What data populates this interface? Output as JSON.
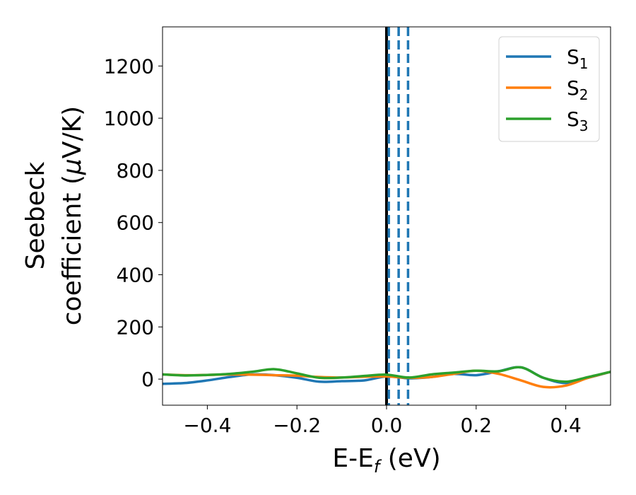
{
  "chart_data": {
    "type": "line",
    "xlabel": {
      "main": "E-E",
      "sub": "f",
      "rest": " (eV)"
    },
    "ylabel": {
      "line1": "Seebeck",
      "line2_pre": "coefficient  (",
      "line2_mu": "μ",
      "line2_post": "V/K)"
    },
    "xlim": [
      -0.5,
      0.5
    ],
    "ylim": [
      -100,
      1350
    ],
    "xticks": [
      {
        "value": -0.4,
        "label": "−0.4"
      },
      {
        "value": -0.2,
        "label": "−0.2"
      },
      {
        "value": 0.0,
        "label": "0.0"
      },
      {
        "value": 0.2,
        "label": "0.2"
      },
      {
        "value": 0.4,
        "label": "0.4"
      }
    ],
    "yticks": [
      {
        "value": 0,
        "label": "0"
      },
      {
        "value": 200,
        "label": "200"
      },
      {
        "value": 400,
        "label": "400"
      },
      {
        "value": 600,
        "label": "600"
      },
      {
        "value": 800,
        "label": "800"
      },
      {
        "value": 1000,
        "label": "1000"
      },
      {
        "value": 1200,
        "label": "1200"
      }
    ],
    "vlines": [
      {
        "x": 0.0,
        "style": "solid",
        "color": "#000000"
      },
      {
        "x": 0.005,
        "style": "dashed",
        "color": "#1f77b4"
      },
      {
        "x": 0.027,
        "style": "dashed",
        "color": "#1f77b4"
      },
      {
        "x": 0.048,
        "style": "dashed",
        "color": "#1f77b4"
      }
    ],
    "legend_position": "top-right",
    "series": [
      {
        "name": "S",
        "sub": "1",
        "color": "#1f77b4",
        "x": [
          -0.5,
          -0.45,
          -0.4,
          -0.35,
          -0.3,
          -0.25,
          -0.2,
          -0.15,
          -0.1,
          -0.05,
          0.0,
          0.05,
          0.1,
          0.15,
          0.2,
          0.25,
          0.3,
          0.35,
          0.4,
          0.45,
          0.5
        ],
        "y": [
          -18,
          -15,
          -5,
          8,
          18,
          15,
          5,
          -10,
          -8,
          -5,
          10,
          3,
          8,
          20,
          15,
          30,
          45,
          5,
          -15,
          5,
          28
        ]
      },
      {
        "name": "S",
        "sub": "2",
        "color": "#ff7f0e",
        "x": [
          -0.5,
          -0.45,
          -0.4,
          -0.35,
          -0.3,
          -0.25,
          -0.2,
          -0.15,
          -0.1,
          -0.05,
          0.0,
          0.05,
          0.1,
          0.15,
          0.2,
          0.25,
          0.3,
          0.35,
          0.4,
          0.45,
          0.5
        ],
        "y": [
          18,
          15,
          16,
          18,
          17,
          15,
          13,
          8,
          6,
          9,
          10,
          5,
          8,
          20,
          32,
          20,
          -5,
          -30,
          -25,
          5,
          28
        ]
      },
      {
        "name": "S",
        "sub": "3",
        "color": "#2ca02c",
        "x": [
          -0.5,
          -0.45,
          -0.4,
          -0.35,
          -0.3,
          -0.25,
          -0.2,
          -0.15,
          -0.1,
          -0.05,
          0.0,
          0.05,
          0.1,
          0.15,
          0.2,
          0.25,
          0.3,
          0.35,
          0.4,
          0.45,
          0.5
        ],
        "y": [
          18,
          14,
          16,
          20,
          28,
          38,
          22,
          5,
          6,
          12,
          17,
          6,
          18,
          25,
          32,
          30,
          45,
          5,
          -10,
          8,
          28
        ]
      }
    ]
  }
}
